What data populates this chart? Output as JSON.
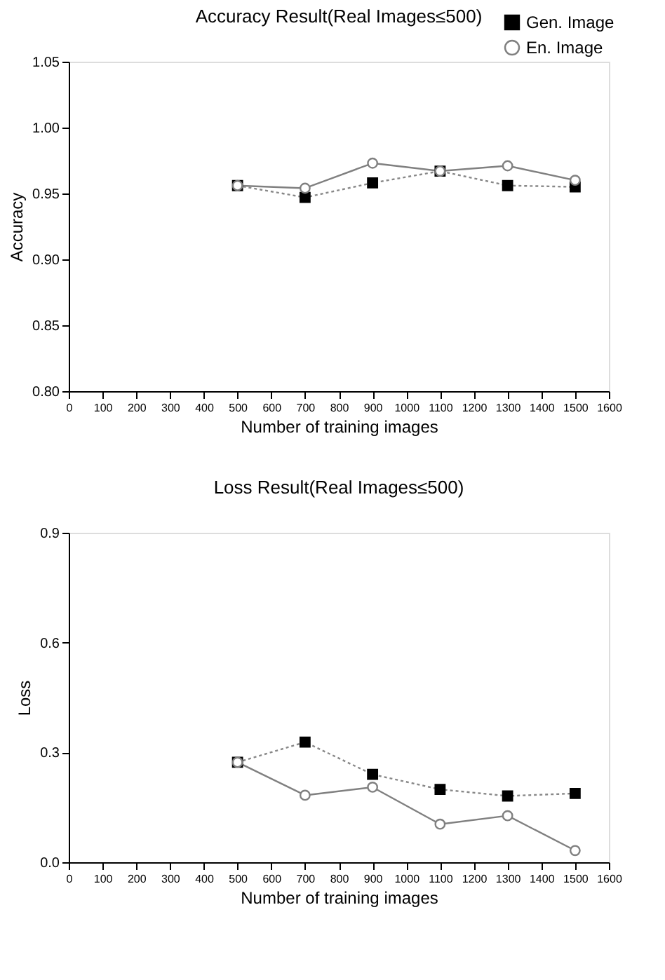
{
  "chart_data": [
    {
      "type": "line",
      "title": "Accuracy Result(Real Images≤500)",
      "xlabel": "Number of training images",
      "ylabel": "Accuracy",
      "x": [
        500,
        700,
        900,
        1100,
        1300,
        1500
      ],
      "xlim": [
        0,
        1600
      ],
      "xticks": [
        0,
        100,
        200,
        300,
        400,
        500,
        600,
        700,
        800,
        900,
        1000,
        1100,
        1200,
        1300,
        1400,
        1500,
        1600
      ],
      "ylim": [
        0.8,
        1.05
      ],
      "yticks": [
        {
          "value": 0.8,
          "label": "0.80"
        },
        {
          "value": 0.85,
          "label": "0.85"
        },
        {
          "value": 0.9,
          "label": "0.90"
        },
        {
          "value": 0.95,
          "label": "0.95"
        },
        {
          "value": 1.0,
          "label": "1.00"
        },
        {
          "value": 1.05,
          "label": "1.05"
        }
      ],
      "grid": false,
      "legend": "top right",
      "series": [
        {
          "name": "Gen. Image",
          "color": "#000000",
          "marker": "square",
          "line_style": "dotted",
          "values": [
            0.956,
            0.947,
            0.958,
            0.967,
            0.956,
            0.955
          ]
        },
        {
          "name": "En. Image",
          "color": "#808080",
          "marker": "circle",
          "line_style": "solid",
          "values": [
            0.956,
            0.954,
            0.973,
            0.967,
            0.971,
            0.96
          ]
        }
      ]
    },
    {
      "type": "line",
      "title": "Loss Result(Real Images≤500)",
      "xlabel": "Number of training images",
      "ylabel": "Loss",
      "x": [
        500,
        700,
        900,
        1100,
        1300,
        1500
      ],
      "xlim": [
        0,
        1600
      ],
      "xticks": [
        0,
        100,
        200,
        300,
        400,
        500,
        600,
        700,
        800,
        900,
        1000,
        1100,
        1200,
        1300,
        1400,
        1500,
        1600
      ],
      "ylim": [
        0,
        0.9
      ],
      "yticks": [
        {
          "value": 0,
          "label": "0.0"
        },
        {
          "value": 0.3,
          "label": "0.3"
        },
        {
          "value": 0.6,
          "label": "0.6"
        },
        {
          "value": 0.9,
          "label": "0.9"
        }
      ],
      "grid": false,
      "legend": "top right",
      "series": [
        {
          "name": "Gen. Image",
          "color": "#000000",
          "marker": "square",
          "line_style": "dotted",
          "values": [
            0.273,
            0.328,
            0.24,
            0.199,
            0.181,
            0.188
          ]
        },
        {
          "name": "En. Image",
          "color": "#808080",
          "marker": "circle",
          "line_style": "solid",
          "values": [
            0.273,
            0.183,
            0.205,
            0.104,
            0.127,
            0.032
          ]
        }
      ]
    }
  ]
}
